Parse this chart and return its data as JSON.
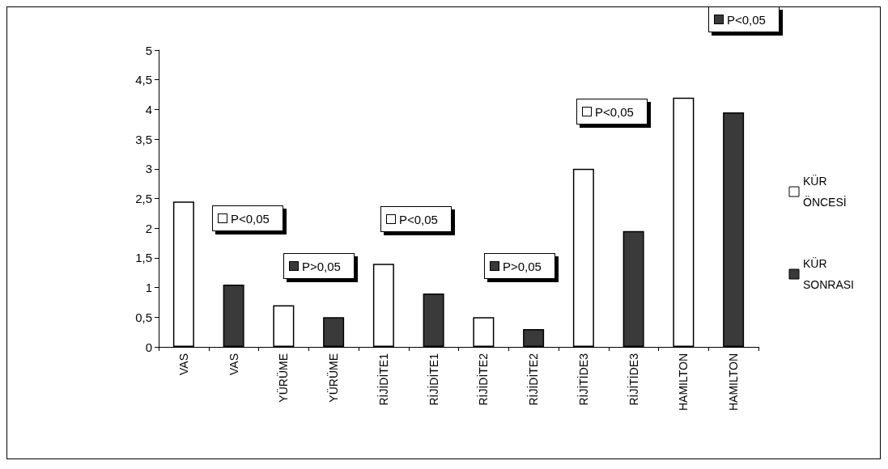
{
  "chart_data": {
    "type": "bar",
    "categories": [
      "VAS",
      "VAS",
      "YÜRÜME",
      "YÜRÜME",
      "RİJİDİTE1",
      "RİJİDİTE1",
      "RİJİDİTE2",
      "RİJİDİTE2",
      "RİJİTİDE3",
      "RİJİTİDE3",
      "HAMILTON",
      "HAMILTON"
    ],
    "series": [
      {
        "name": "KÜR ÖNCESİ",
        "color": "#ffffff",
        "values": [
          2.45,
          null,
          0.7,
          null,
          1.4,
          null,
          0.5,
          null,
          3,
          null,
          4.2,
          null
        ]
      },
      {
        "name": "KÜR SONRASI",
        "color": "#3a3a3a",
        "values": [
          null,
          1.05,
          null,
          0.5,
          null,
          0.9,
          null,
          0.3,
          null,
          1.95,
          null,
          3.95
        ]
      }
    ],
    "ylim": [
      0,
      5
    ],
    "yticks": [
      0,
      {
        "value": 0.5,
        "label": "0,5"
      },
      1,
      {
        "value": 1.5,
        "label": "1,5"
      },
      2,
      {
        "value": 2.5,
        "label": "2,5"
      },
      3,
      {
        "value": 3.5,
        "label": "3,5"
      },
      4,
      {
        "value": 4.5,
        "label": "4,5"
      },
      5
    ],
    "annotations": [
      "P<0,05",
      "P>0,05",
      "P<0,05",
      "P>0,05",
      "P<0,05",
      "P<0,05"
    ],
    "grid": false,
    "legend": "right"
  }
}
